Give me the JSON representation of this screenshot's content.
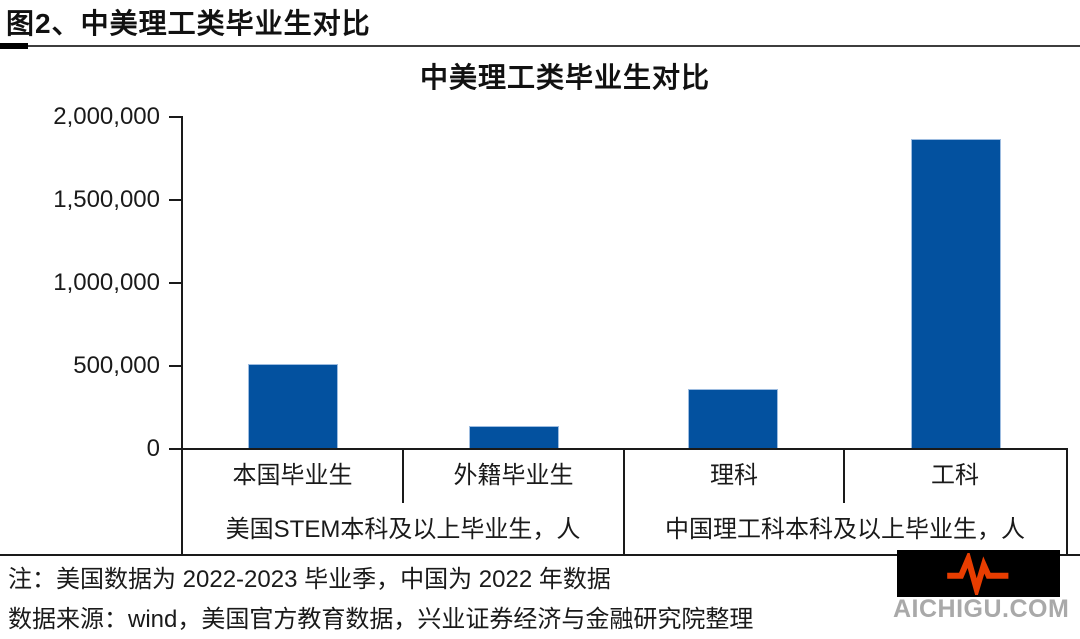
{
  "page": {
    "figure_heading": "图2、中美理工类毕业生对比",
    "notes": {
      "note": "注：美国数据为 2022-2023 毕业季，中国为 2022 年数据",
      "source": "数据来源：wind，美国官方教育数据，兴业证券经济与金融研究院整理"
    },
    "watermark": {
      "text": "AICHIGU.COM",
      "bg_color": "#000000",
      "pulse_color": "#E83D00",
      "text_color": "#A9A9A9"
    }
  },
  "chart_data": {
    "type": "bar",
    "title": "中美理工类毕业生对比",
    "categories": [
      "本国毕业生",
      "外籍毕业生",
      "理科",
      "工科"
    ],
    "values": [
      510000,
      140000,
      360000,
      1860000
    ],
    "groups": [
      {
        "label": "美国STEM本科及以上毕业生，人",
        "categories": [
          "本国毕业生",
          "外籍毕业生"
        ],
        "values": [
          510000,
          140000
        ]
      },
      {
        "label": "中国理工科本科及以上毕业生，人",
        "categories": [
          "理科",
          "工科"
        ],
        "values": [
          360000,
          1860000
        ]
      }
    ],
    "xlabel": "",
    "ylabel": "",
    "ylim": [
      0,
      2000000
    ],
    "yticks": [
      0,
      500000,
      1000000,
      1500000,
      2000000
    ],
    "ytick_labels_top_to_bottom": [
      "2,000,000",
      "1,500,000",
      "1,000,000",
      "500,000",
      "0"
    ],
    "bar_color": "#03519F",
    "bar_border_color": "#9DBCE0",
    "grid": false,
    "legend": false
  }
}
